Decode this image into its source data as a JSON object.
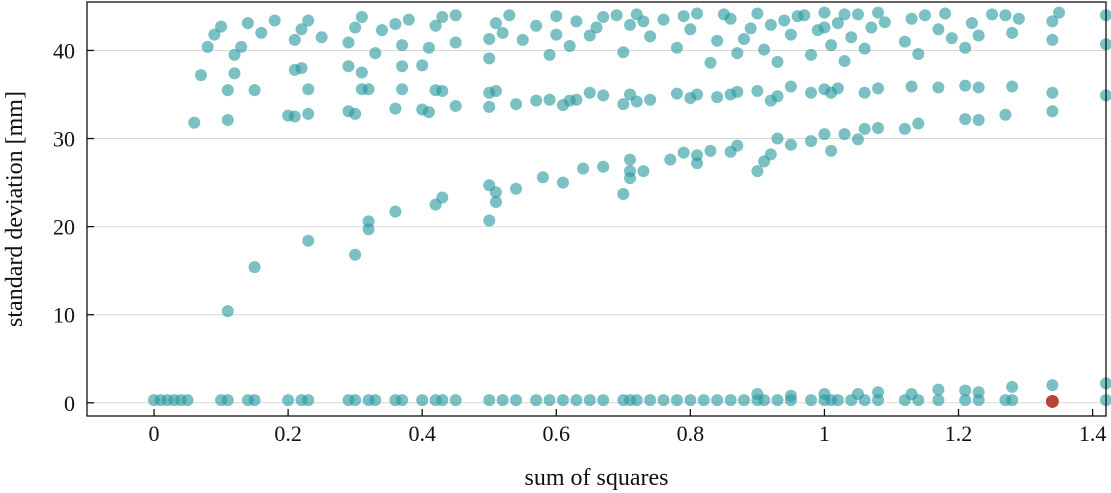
{
  "chart_data": {
    "type": "scatter",
    "title": "",
    "xlabel": "sum of squares",
    "ylabel": "standard deviation [mm]",
    "xlim": [
      -0.1,
      1.42
    ],
    "ylim": [
      -1.5,
      45.5
    ],
    "xticks": [
      0,
      0.2,
      0.4,
      0.6,
      0.8,
      1,
      1.2,
      1.4
    ],
    "xtick_labels": [
      "0",
      "0.2",
      "0.4",
      "0.6",
      "0.8",
      "1",
      "1.2",
      "1.4"
    ],
    "yticks": [
      0,
      10,
      20,
      30,
      40
    ],
    "ytick_labels": [
      "0",
      "10",
      "20",
      "30",
      "40"
    ],
    "grid": "horizontal",
    "colors": {
      "points": "#2a9a9e",
      "highlight": "#b23a2e",
      "grid": "#d9d9d9",
      "axes": "#111111"
    },
    "series": [
      {
        "points": [
          [
            0,
            0.3
          ],
          [
            0.01,
            0.3
          ],
          [
            0.02,
            0.3
          ],
          [
            0.03,
            0.3
          ],
          [
            0.04,
            0.3
          ],
          [
            0.05,
            0.3
          ],
          [
            0.1,
            0.3
          ],
          [
            0.11,
            0.3
          ],
          [
            0.14,
            0.3
          ],
          [
            0.15,
            0.3
          ],
          [
            0.2,
            0.3
          ],
          [
            0.22,
            0.3
          ],
          [
            0.23,
            0.3
          ],
          [
            0.29,
            0.3
          ],
          [
            0.3,
            0.3
          ],
          [
            0.32,
            0.3
          ],
          [
            0.33,
            0.3
          ],
          [
            0.36,
            0.3
          ],
          [
            0.37,
            0.3
          ],
          [
            0.4,
            0.3
          ],
          [
            0.42,
            0.3
          ],
          [
            0.43,
            0.3
          ],
          [
            0.45,
            0.3
          ],
          [
            0.5,
            0.3
          ],
          [
            0.52,
            0.3
          ],
          [
            0.54,
            0.3
          ],
          [
            0.57,
            0.3
          ],
          [
            0.59,
            0.3
          ],
          [
            0.61,
            0.3
          ],
          [
            0.63,
            0.3
          ],
          [
            0.65,
            0.3
          ],
          [
            0.67,
            0.3
          ],
          [
            0.7,
            0.3
          ],
          [
            0.71,
            0.3
          ],
          [
            0.72,
            0.3
          ],
          [
            0.74,
            0.3
          ],
          [
            0.76,
            0.3
          ],
          [
            0.78,
            0.3
          ],
          [
            0.8,
            0.3
          ],
          [
            0.82,
            0.3
          ],
          [
            0.84,
            0.3
          ],
          [
            0.86,
            0.3
          ],
          [
            0.88,
            0.3
          ],
          [
            0.9,
            0.3
          ],
          [
            0.91,
            0.3
          ],
          [
            0.93,
            0.3
          ],
          [
            0.95,
            0.3
          ],
          [
            0.98,
            0.3
          ],
          [
            1,
            0.3
          ],
          [
            1.01,
            0.3
          ],
          [
            1.02,
            0.3
          ],
          [
            1.04,
            0.3
          ],
          [
            1.06,
            0.3
          ],
          [
            1.08,
            0.3
          ],
          [
            1.12,
            0.3
          ],
          [
            1.14,
            0.3
          ],
          [
            1.17,
            0.3
          ],
          [
            1.21,
            0.3
          ],
          [
            1.23,
            0.3
          ],
          [
            1.27,
            0.3
          ],
          [
            1.28,
            0.3
          ],
          [
            1.42,
            0.3
          ],
          [
            0.9,
            1.0
          ],
          [
            0.95,
            0.8
          ],
          [
            1.0,
            1.0
          ],
          [
            1.05,
            1.0
          ],
          [
            1.08,
            1.2
          ],
          [
            1.13,
            1.0
          ],
          [
            1.17,
            1.5
          ],
          [
            1.21,
            1.4
          ],
          [
            1.23,
            1.2
          ],
          [
            1.28,
            1.8
          ],
          [
            1.34,
            2.0
          ],
          [
            1.42,
            2.2
          ],
          [
            0.11,
            10.4
          ],
          [
            0.15,
            15.4
          ],
          [
            0.23,
            18.4
          ],
          [
            0.3,
            16.8
          ],
          [
            0.32,
            19.7
          ],
          [
            0.32,
            20.6
          ],
          [
            0.36,
            21.7
          ],
          [
            0.42,
            22.5
          ],
          [
            0.43,
            23.3
          ],
          [
            0.5,
            20.7
          ],
          [
            0.5,
            24.7
          ],
          [
            0.51,
            22.8
          ],
          [
            0.51,
            23.9
          ],
          [
            0.54,
            24.3
          ],
          [
            0.58,
            25.6
          ],
          [
            0.61,
            25.0
          ],
          [
            0.64,
            26.6
          ],
          [
            0.67,
            26.8
          ],
          [
            0.7,
            23.7
          ],
          [
            0.71,
            25.5
          ],
          [
            0.71,
            26.3
          ],
          [
            0.71,
            27.6
          ],
          [
            0.73,
            26.3
          ],
          [
            0.77,
            27.6
          ],
          [
            0.79,
            28.4
          ],
          [
            0.81,
            28.1
          ],
          [
            0.81,
            27.2
          ],
          [
            0.83,
            28.6
          ],
          [
            0.86,
            28.5
          ],
          [
            0.87,
            29.2
          ],
          [
            0.9,
            26.3
          ],
          [
            0.91,
            27.4
          ],
          [
            0.92,
            28.2
          ],
          [
            0.93,
            30.0
          ],
          [
            0.95,
            29.3
          ],
          [
            0.98,
            29.7
          ],
          [
            1,
            30.5
          ],
          [
            1.01,
            28.6
          ],
          [
            1.03,
            30.5
          ],
          [
            1.05,
            29.9
          ],
          [
            1.06,
            31.1
          ],
          [
            1.08,
            31.2
          ],
          [
            1.12,
            31.1
          ],
          [
            1.14,
            31.7
          ],
          [
            1.21,
            32.2
          ],
          [
            1.23,
            32.1
          ],
          [
            0.06,
            31.8
          ],
          [
            0.11,
            32.1
          ],
          [
            0.07,
            37.2
          ],
          [
            0.11,
            35.5
          ],
          [
            0.12,
            37.4
          ],
          [
            0.15,
            35.5
          ],
          [
            0.2,
            32.6
          ],
          [
            0.21,
            32.5
          ],
          [
            0.23,
            32.8
          ],
          [
            0.21,
            37.8
          ],
          [
            0.23,
            35.6
          ],
          [
            0.22,
            38.0
          ],
          [
            0.29,
            33.1
          ],
          [
            0.3,
            32.8
          ],
          [
            0.31,
            35.6
          ],
          [
            0.31,
            37.5
          ],
          [
            0.32,
            35.6
          ],
          [
            0.36,
            33.4
          ],
          [
            0.37,
            35.6
          ],
          [
            0.37,
            38.2
          ],
          [
            0.4,
            33.3
          ],
          [
            0.41,
            33.0
          ],
          [
            0.42,
            35.5
          ],
          [
            0.43,
            35.4
          ],
          [
            0.45,
            33.7
          ],
          [
            0.5,
            33.6
          ],
          [
            0.5,
            35.2
          ],
          [
            0.51,
            35.4
          ],
          [
            0.54,
            33.9
          ],
          [
            0.57,
            34.3
          ],
          [
            0.59,
            34.4
          ],
          [
            0.61,
            33.8
          ],
          [
            0.62,
            34.3
          ],
          [
            0.63,
            34.4
          ],
          [
            0.65,
            35.2
          ],
          [
            0.67,
            34.9
          ],
          [
            0.7,
            33.9
          ],
          [
            0.71,
            35.0
          ],
          [
            0.72,
            34.2
          ],
          [
            0.74,
            34.4
          ],
          [
            0.78,
            35.1
          ],
          [
            0.8,
            34.6
          ],
          [
            0.81,
            35.0
          ],
          [
            0.84,
            34.7
          ],
          [
            0.86,
            35.0
          ],
          [
            0.87,
            35.3
          ],
          [
            0.9,
            35.4
          ],
          [
            0.92,
            34.3
          ],
          [
            0.93,
            34.8
          ],
          [
            0.95,
            35.9
          ],
          [
            0.98,
            35.2
          ],
          [
            1,
            35.6
          ],
          [
            1.01,
            35.2
          ],
          [
            1.02,
            35.7
          ],
          [
            1.06,
            35.2
          ],
          [
            1.08,
            35.7
          ],
          [
            1.13,
            35.9
          ],
          [
            1.17,
            35.8
          ],
          [
            1.21,
            36.0
          ],
          [
            1.23,
            35.8
          ],
          [
            1.27,
            32.7
          ],
          [
            1.28,
            35.9
          ],
          [
            1.34,
            33.1
          ],
          [
            1.34,
            35.2
          ],
          [
            1.42,
            34.9
          ],
          [
            0.08,
            40.4
          ],
          [
            0.09,
            41.8
          ],
          [
            0.1,
            42.7
          ],
          [
            0.12,
            39.5
          ],
          [
            0.13,
            40.4
          ],
          [
            0.14,
            43.1
          ],
          [
            0.16,
            42.0
          ],
          [
            0.18,
            43.4
          ],
          [
            0.21,
            41.2
          ],
          [
            0.22,
            42.4
          ],
          [
            0.23,
            43.4
          ],
          [
            0.25,
            41.5
          ],
          [
            0.29,
            38.2
          ],
          [
            0.29,
            40.9
          ],
          [
            0.3,
            42.6
          ],
          [
            0.31,
            43.8
          ],
          [
            0.33,
            39.7
          ],
          [
            0.34,
            42.3
          ],
          [
            0.37,
            40.6
          ],
          [
            0.38,
            43.5
          ],
          [
            0.4,
            38.3
          ],
          [
            0.41,
            40.3
          ],
          [
            0.42,
            42.8
          ],
          [
            0.43,
            43.8
          ],
          [
            0.45,
            40.9
          ],
          [
            0.5,
            39.1
          ],
          [
            0.5,
            41.3
          ],
          [
            0.51,
            43.1
          ],
          [
            0.53,
            44.0
          ],
          [
            0.55,
            41.2
          ],
          [
            0.57,
            42.8
          ],
          [
            0.59,
            39.5
          ],
          [
            0.6,
            43.9
          ],
          [
            0.62,
            40.5
          ],
          [
            0.63,
            43.3
          ],
          [
            0.65,
            41.7
          ],
          [
            0.67,
            43.8
          ],
          [
            0.7,
            39.8
          ],
          [
            0.71,
            42.9
          ],
          [
            0.72,
            44.1
          ],
          [
            0.74,
            41.6
          ],
          [
            0.76,
            43.5
          ],
          [
            0.78,
            40.3
          ],
          [
            0.8,
            42.4
          ],
          [
            0.81,
            44.2
          ],
          [
            0.83,
            38.6
          ],
          [
            0.84,
            41.1
          ],
          [
            0.86,
            43.6
          ],
          [
            0.87,
            39.7
          ],
          [
            0.89,
            42.5
          ],
          [
            0.9,
            44.2
          ],
          [
            0.91,
            40.1
          ],
          [
            0.92,
            42.9
          ],
          [
            0.93,
            38.7
          ],
          [
            0.95,
            41.8
          ],
          [
            0.96,
            43.9
          ],
          [
            0.98,
            39.5
          ],
          [
            0.99,
            42.3
          ],
          [
            1,
            44.3
          ],
          [
            1.01,
            40.6
          ],
          [
            1.02,
            43.1
          ],
          [
            1.03,
            38.8
          ],
          [
            1.04,
            41.5
          ],
          [
            1.05,
            44.1
          ],
          [
            1.06,
            40.2
          ],
          [
            1.07,
            42.6
          ],
          [
            1.08,
            44.3
          ],
          [
            1.12,
            41.0
          ],
          [
            1.13,
            43.6
          ],
          [
            1.14,
            39.6
          ],
          [
            1.17,
            42.4
          ],
          [
            1.18,
            44.2
          ],
          [
            1.21,
            40.3
          ],
          [
            1.22,
            43.1
          ],
          [
            1.23,
            41.7
          ],
          [
            1.27,
            44.0
          ],
          [
            1.28,
            42.0
          ],
          [
            1.34,
            43.3
          ],
          [
            1.34,
            41.2
          ],
          [
            1.42,
            44.0
          ],
          [
            1.42,
            40.7
          ],
          [
            0.36,
            43.0
          ],
          [
            0.45,
            44.0
          ],
          [
            0.52,
            42.0
          ],
          [
            0.6,
            41.8
          ],
          [
            0.66,
            42.6
          ],
          [
            0.73,
            43.3
          ],
          [
            0.79,
            43.9
          ],
          [
            0.85,
            44.1
          ],
          [
            0.88,
            41.3
          ],
          [
            0.94,
            43.4
          ],
          [
            0.97,
            44.0
          ],
          [
            1.0,
            42.6
          ],
          [
            1.03,
            44.1
          ],
          [
            1.09,
            43.2
          ],
          [
            1.15,
            44.0
          ],
          [
            1.19,
            41.4
          ],
          [
            1.25,
            44.1
          ],
          [
            1.29,
            43.6
          ],
          [
            1.35,
            44.3
          ],
          [
            0.69,
            44.0
          ]
        ]
      },
      {
        "points": [
          [
            1.34,
            0.15
          ]
        ]
      }
    ]
  }
}
